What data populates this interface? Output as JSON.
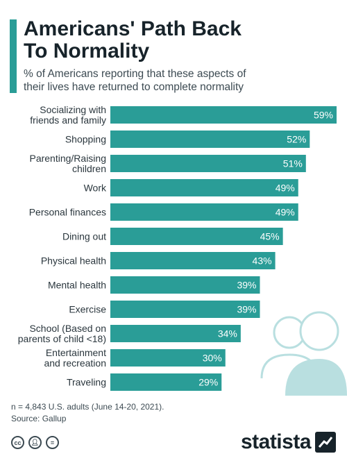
{
  "header": {
    "title": "Americans' Path Back\nTo Normality",
    "subtitle": "% of Americans reporting that these aspects of\ntheir lives have returned to complete normality"
  },
  "colors": {
    "accent": "#2a9d97",
    "bar": "#2a9d97",
    "decor": "#b9dfe0"
  },
  "chart_data": {
    "type": "bar",
    "orientation": "horizontal",
    "categories": [
      "Socializing with\nfriends and family",
      "Shopping",
      "Parenting/Raising\nchildren",
      "Work",
      "Personal finances",
      "Dining out",
      "Physical health",
      "Mental health",
      "Exercise",
      "School (Based on\nparents of child <18)",
      "Entertainment\nand recreation",
      "Traveling"
    ],
    "values": [
      59,
      52,
      51,
      49,
      49,
      45,
      43,
      39,
      39,
      34,
      30,
      29
    ],
    "value_suffix": "%",
    "xlim": [
      0,
      59
    ],
    "grid": false
  },
  "footer": {
    "note": "n = 4,843 U.S. adults (June 14-20, 2021).",
    "source": "Source: Gallup",
    "brand": "statista",
    "license_icons": [
      "cc-icon",
      "by-person-icon",
      "nd-equals-icon"
    ]
  }
}
